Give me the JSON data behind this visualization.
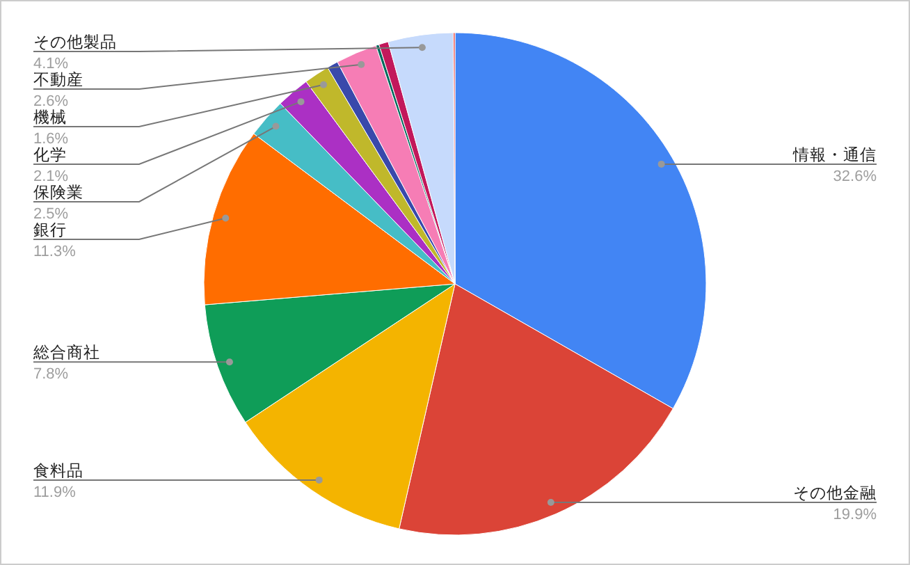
{
  "chart_data": {
    "type": "pie",
    "categories": [
      "情報・通信",
      "その他金融",
      "食料品",
      "総合商社",
      "銀行",
      "保険業",
      "化学",
      "機械",
      null,
      "不動産",
      null,
      null,
      "その他製品",
      null
    ],
    "values": [
      32.6,
      19.9,
      11.9,
      7.8,
      11.3,
      2.5,
      2.1,
      1.6,
      0.7,
      2.6,
      0.2,
      0.6,
      4.1,
      0.1
    ],
    "colors": [
      "#4285f4",
      "#db4437",
      "#f4b400",
      "#0f9d58",
      "#ff6d00",
      "#46bdc6",
      "#ab30c4",
      "#c0b82b",
      "#3949ab",
      "#f67db5",
      "#00695c",
      "#c2185b",
      "#c6dafc",
      "#e53935"
    ],
    "value_labels": [
      "32.6%",
      "19.9%",
      "11.9%",
      "7.8%",
      "11.3%",
      "2.5%",
      "2.1%",
      "1.6%",
      null,
      "2.6%",
      null,
      null,
      "4.1%",
      null
    ]
  }
}
